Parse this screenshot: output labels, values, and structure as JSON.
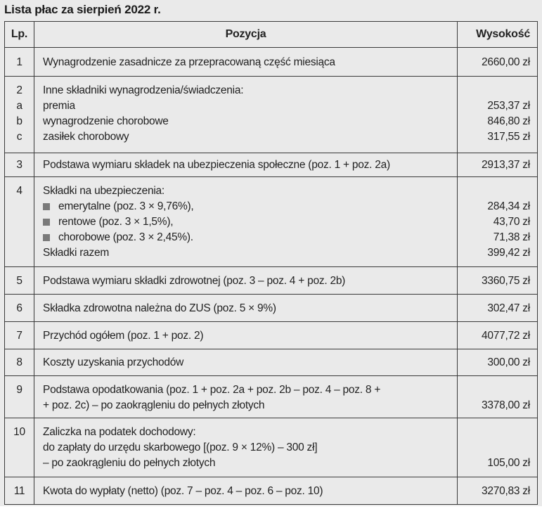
{
  "title": "Lista płac za sierpień 2022 r.",
  "headers": {
    "lp": "Lp.",
    "position": "Pozycja",
    "amount": "Wysokość"
  },
  "rows": [
    {
      "lines": [
        {
          "lp": "1",
          "text": "Wynagrodzenie zasadnicze za przepracowaną część miesiąca",
          "value": "2660,00 zł"
        }
      ]
    },
    {
      "lines": [
        {
          "lp": "2",
          "text": "Inne składniki wynagrodzenia/świadczenia:",
          "value": ""
        },
        {
          "lp": "a",
          "text": "premia",
          "value": "253,37 zł"
        },
        {
          "lp": "b",
          "text": "wynagrodzenie chorobowe",
          "value": "846,80 zł"
        },
        {
          "lp": "c",
          "text": "zasiłek chorobowy",
          "value": "317,55 zł"
        }
      ]
    },
    {
      "lines": [
        {
          "lp": "3",
          "text": "Podstawa wymiaru składek na ubezpieczenia społeczne (poz. 1 + poz. 2a)",
          "value": "2913,37 zł"
        }
      ]
    },
    {
      "lines": [
        {
          "lp": "4",
          "text": "Składki na ubezpieczenia:",
          "value": ""
        },
        {
          "lp": "",
          "text": "emerytalne (poz. 3 × 9,76%),",
          "value": "284,34 zł",
          "bullet": true
        },
        {
          "lp": "",
          "text": "rentowe (poz. 3 × 1,5%),",
          "value": "43,70 zł",
          "bullet": true
        },
        {
          "lp": "",
          "text": "chorobowe (poz. 3 × 2,45%).",
          "value": "71,38 zł",
          "bullet": true
        },
        {
          "lp": "",
          "text": "Składki razem",
          "value": "399,42 zł"
        }
      ]
    },
    {
      "lines": [
        {
          "lp": "5",
          "text": "Podstawa wymiaru składki zdrowotnej (poz. 3 – poz. 4 + poz. 2b)",
          "value": "3360,75 zł"
        }
      ]
    },
    {
      "lines": [
        {
          "lp": "6",
          "text": "Składka zdrowotna należna do ZUS (poz. 5 × 9%)",
          "value": "302,47 zł"
        }
      ]
    },
    {
      "lines": [
        {
          "lp": "7",
          "text": "Przychód ogółem (poz. 1 + poz. 2)",
          "value": "4077,72 zł"
        }
      ]
    },
    {
      "lines": [
        {
          "lp": "8",
          "text": "Koszty uzyskania przychodów",
          "value": "300,00 zł"
        }
      ]
    },
    {
      "lines": [
        {
          "lp": "9",
          "text": "Podstawa opodatkowania (poz. 1 + poz. 2a + poz. 2b – poz. 4 – poz. 8  +",
          "value": ""
        },
        {
          "lp": "",
          "text": "+ poz. 2c) – po zaokrągleniu do pełnych złotych",
          "value": "3378,00 zł"
        }
      ]
    },
    {
      "lines": [
        {
          "lp": "10",
          "text": "Zaliczka na podatek dochodowy:",
          "value": ""
        },
        {
          "lp": "",
          "text": "do zapłaty do urzędu skarbowego [(poz. 9 × 12%) – 300 zł]",
          "value": ""
        },
        {
          "lp": "",
          "text": "– po zaokrągleniu do pełnych złotych",
          "value": "105,00 zł"
        }
      ]
    },
    {
      "lines": [
        {
          "lp": "11",
          "text": "Kwota do wypłaty (netto) (poz. 7 – poz. 4 – poz. 6 – poz. 10)",
          "value": "3270,83 zł"
        }
      ]
    }
  ],
  "colors": {
    "background": "#eaeaea",
    "border": "#3a3a3a",
    "bullet": "#7a7a7a"
  }
}
